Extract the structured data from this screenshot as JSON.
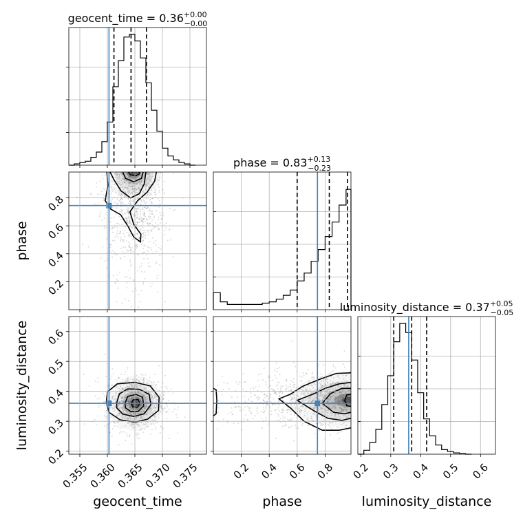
{
  "chart_data": {
    "type": "corner",
    "parameters": [
      "geocent_time",
      "phase",
      "luminosity_distance"
    ],
    "colors": {
      "truth": "#4682b4",
      "hist": "#000000",
      "quantile": "#000000",
      "density_max": "#000000",
      "samples": "#999999"
    },
    "grid": true,
    "truths": {
      "geocent_time": 0.3603,
      "phase": 0.745,
      "luminosity_distance": 0.36
    },
    "titles": {
      "geocent_time": {
        "label": "geocent_time = 0.36",
        "plus": "+0.00",
        "minus": "−0.00"
      },
      "phase": {
        "label": "phase = 0.83",
        "plus": "+0.13",
        "minus": "−0.23"
      },
      "luminosity_distance": {
        "label": "luminosity_distance = 0.37",
        "plus": "+0.05",
        "minus": "−0.05"
      }
    },
    "axes": {
      "geocent_time": {
        "range": [
          0.353,
          0.378
        ],
        "ticks": [
          0.355,
          0.36,
          0.365,
          0.37,
          0.375
        ],
        "tick_labels": [
          "0.355",
          "0.360",
          "0.365",
          "0.370",
          "0.375"
        ]
      },
      "phase": {
        "range": [
          0.0,
          0.985
        ],
        "ticks": [
          0.2,
          0.4,
          0.6,
          0.8
        ],
        "tick_labels": [
          "0.2",
          "0.4",
          "0.6",
          "0.8"
        ]
      },
      "luminosity_distance": {
        "range": [
          0.19,
          0.65
        ],
        "ticks": [
          0.2,
          0.3,
          0.4,
          0.5,
          0.6
        ],
        "tick_labels": [
          "0.2",
          "0.3",
          "0.4",
          "0.5",
          "0.6"
        ]
      }
    },
    "marginals": {
      "geocent_time": {
        "edges": [
          0.353,
          0.354,
          0.355,
          0.356,
          0.357,
          0.358,
          0.359,
          0.36,
          0.361,
          0.362,
          0.363,
          0.364,
          0.365,
          0.366,
          0.367,
          0.368,
          0.369,
          0.37,
          0.371,
          0.372,
          0.373,
          0.374,
          0.375,
          0.376
        ],
        "counts": [
          0,
          0.01,
          0.02,
          0.03,
          0.06,
          0.1,
          0.18,
          0.33,
          0.6,
          0.8,
          0.98,
          1.0,
          0.95,
          0.82,
          0.63,
          0.42,
          0.26,
          0.13,
          0.07,
          0.04,
          0.02,
          0.01,
          0
        ],
        "quantiles": [
          0.3612,
          0.3643,
          0.3671
        ]
      },
      "phase": {
        "edges": [
          0.0,
          0.05,
          0.1,
          0.15,
          0.2,
          0.25,
          0.3,
          0.35,
          0.4,
          0.45,
          0.5,
          0.55,
          0.6,
          0.65,
          0.7,
          0.75,
          0.8,
          0.85,
          0.9,
          0.95,
          0.985
        ],
        "counts": [
          0.13,
          0.06,
          0.04,
          0.04,
          0.04,
          0.04,
          0.04,
          0.05,
          0.06,
          0.08,
          0.11,
          0.15,
          0.22,
          0.28,
          0.37,
          0.46,
          0.56,
          0.67,
          0.8,
          0.92
        ],
        "quantiles": [
          0.6,
          0.83,
          0.96
        ]
      },
      "luminosity_distance": {
        "edges": [
          0.19,
          0.21,
          0.23,
          0.25,
          0.27,
          0.29,
          0.31,
          0.33,
          0.35,
          0.37,
          0.39,
          0.41,
          0.43,
          0.45,
          0.47,
          0.49,
          0.51,
          0.53,
          0.55,
          0.57
        ],
        "counts": [
          0.0,
          0.03,
          0.09,
          0.19,
          0.38,
          0.6,
          0.86,
          1.0,
          0.93,
          0.72,
          0.47,
          0.27,
          0.14,
          0.07,
          0.035,
          0.02,
          0.01,
          0.005,
          0.0
        ],
        "quantiles": [
          0.31,
          0.37,
          0.42
        ]
      }
    },
    "pairs": [
      {
        "x": "geocent_time",
        "y": "phase",
        "density_peak": [
          0.3648,
          0.985
        ],
        "levels": [
          [
            [
              0.3605,
              0.985
            ],
            [
              0.3612,
              0.93
            ],
            [
              0.3625,
              0.85
            ],
            [
              0.3642,
              0.8
            ],
            [
              0.3658,
              0.83
            ],
            [
              0.3667,
              0.9
            ],
            [
              0.367,
              0.985
            ]
          ],
          [
            [
              0.3628,
              0.985
            ],
            [
              0.3633,
              0.94
            ],
            [
              0.3648,
              0.915
            ],
            [
              0.3662,
              0.94
            ],
            [
              0.3665,
              0.985
            ]
          ],
          [
            [
              0.3638,
              0.985
            ],
            [
              0.3642,
              0.965
            ],
            [
              0.3652,
              0.958
            ],
            [
              0.3659,
              0.975
            ],
            [
              0.3657,
              0.985
            ]
          ],
          [
            [
              0.3599,
              0.985
            ],
            [
              0.3601,
              0.89
            ],
            [
              0.3596,
              0.78
            ],
            [
              0.3606,
              0.72
            ],
            [
              0.3624,
              0.68
            ],
            [
              0.3637,
              0.6
            ],
            [
              0.3648,
              0.52
            ],
            [
              0.366,
              0.485
            ],
            [
              0.3661,
              0.54
            ],
            [
              0.3648,
              0.61
            ],
            [
              0.3641,
              0.7
            ],
            [
              0.3655,
              0.78
            ],
            [
              0.3672,
              0.84
            ],
            [
              0.3686,
              0.92
            ],
            [
              0.3689,
              0.985
            ]
          ]
        ]
      },
      {
        "x": "geocent_time",
        "y": "luminosity_distance",
        "density_peak": [
          0.365,
          0.36
        ],
        "levels": [
          [
            [
              0.3598,
              0.362
            ],
            [
              0.36,
              0.398
            ],
            [
              0.3618,
              0.425
            ],
            [
              0.365,
              0.43
            ],
            [
              0.3678,
              0.418
            ],
            [
              0.3694,
              0.38
            ],
            [
              0.3693,
              0.336
            ],
            [
              0.3673,
              0.307
            ],
            [
              0.365,
              0.297
            ],
            [
              0.3623,
              0.305
            ],
            [
              0.3603,
              0.33
            ],
            [
              0.3598,
              0.362
            ]
          ],
          [
            [
              0.3617,
              0.362
            ],
            [
              0.3622,
              0.392
            ],
            [
              0.3637,
              0.408
            ],
            [
              0.3658,
              0.407
            ],
            [
              0.3676,
              0.39
            ],
            [
              0.3679,
              0.355
            ],
            [
              0.3667,
              0.325
            ],
            [
              0.3648,
              0.316
            ],
            [
              0.3628,
              0.324
            ],
            [
              0.3617,
              0.345
            ],
            [
              0.3617,
              0.362
            ]
          ],
          [
            [
              0.3632,
              0.36
            ],
            [
              0.3637,
              0.383
            ],
            [
              0.3652,
              0.39
            ],
            [
              0.3664,
              0.38
            ],
            [
              0.3666,
              0.352
            ],
            [
              0.3656,
              0.333
            ],
            [
              0.3642,
              0.333
            ],
            [
              0.3633,
              0.345
            ],
            [
              0.3632,
              0.36
            ]
          ],
          [
            [
              0.3643,
              0.36
            ],
            [
              0.3647,
              0.372
            ],
            [
              0.3656,
              0.373
            ],
            [
              0.3659,
              0.36
            ],
            [
              0.3655,
              0.347
            ],
            [
              0.3646,
              0.348
            ],
            [
              0.3643,
              0.36
            ]
          ]
        ]
      },
      {
        "x": "phase",
        "y": "luminosity_distance",
        "density_peak": [
          0.975,
          0.37
        ],
        "levels": [
          [
            [
              0.985,
              0.462
            ],
            [
              0.88,
              0.46
            ],
            [
              0.76,
              0.44
            ],
            [
              0.64,
              0.417
            ],
            [
              0.55,
              0.39
            ],
            [
              0.47,
              0.375
            ],
            [
              0.55,
              0.345
            ],
            [
              0.65,
              0.3
            ],
            [
              0.78,
              0.27
            ],
            [
              0.9,
              0.27
            ],
            [
              0.985,
              0.278
            ]
          ],
          [
            [
              0.985,
              0.43
            ],
            [
              0.9,
              0.425
            ],
            [
              0.8,
              0.41
            ],
            [
              0.72,
              0.392
            ],
            [
              0.6,
              0.37
            ],
            [
              0.72,
              0.335
            ],
            [
              0.82,
              0.31
            ],
            [
              0.92,
              0.303
            ],
            [
              0.985,
              0.31
            ]
          ],
          [
            [
              0.985,
              0.41
            ],
            [
              0.92,
              0.41
            ],
            [
              0.84,
              0.393
            ],
            [
              0.78,
              0.36
            ],
            [
              0.86,
              0.33
            ],
            [
              0.94,
              0.325
            ],
            [
              0.985,
              0.33
            ]
          ],
          [
            [
              0.985,
              0.39
            ],
            [
              0.955,
              0.388
            ],
            [
              0.94,
              0.37
            ],
            [
              0.955,
              0.352
            ],
            [
              0.985,
              0.35
            ]
          ],
          [
            [
              0.0,
              0.41
            ],
            [
              0.02,
              0.405
            ],
            [
              0.025,
              0.37
            ],
            [
              0.02,
              0.325
            ],
            [
              0.0,
              0.318
            ]
          ]
        ]
      }
    ],
    "truth_markers": [
      {
        "x": "geocent_time",
        "y": "phase"
      },
      {
        "x": "geocent_time",
        "y": "luminosity_distance"
      },
      {
        "x": "phase",
        "y": "luminosity_distance"
      }
    ],
    "axis_labels": {
      "geocent_time": "geocent_time",
      "phase": "phase",
      "luminosity_distance": "luminosity_distance"
    }
  }
}
